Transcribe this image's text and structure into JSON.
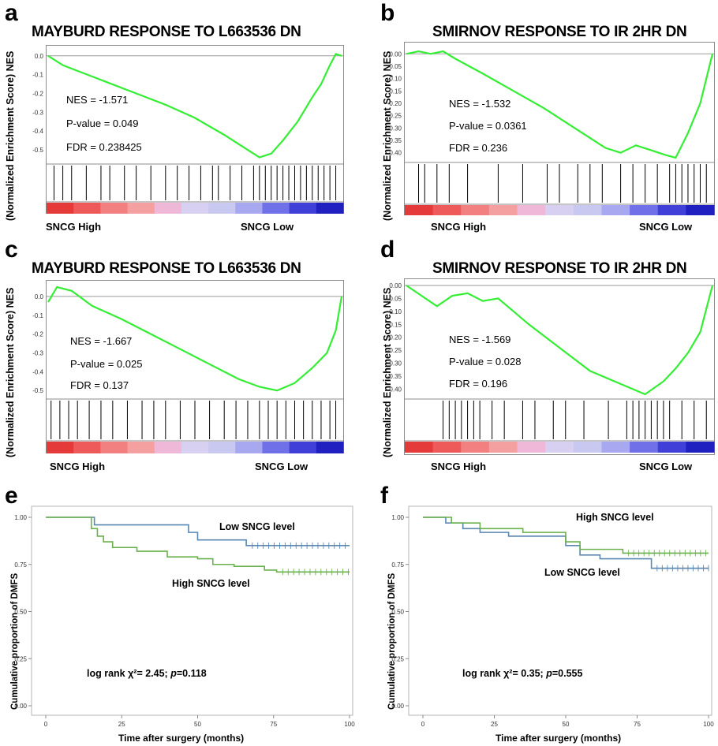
{
  "panels": {
    "a": {
      "letter": "a",
      "title": "MAYBURD RESPONSE TO L663536 DN",
      "ylabel": "(Normalized Enrichment Score) NES",
      "yticks": [
        "0.0",
        "-0.1",
        "-0.2",
        "-0.3",
        "-0.4",
        "-0.5"
      ],
      "nes": "NES = -1.571",
      "pval": "P-value = 0.049",
      "fdr": "FDR = 0.238425",
      "xleft": "SNCG High",
      "xright": "SNCG Low"
    },
    "b": {
      "letter": "b",
      "title": "SMIRNOV RESPONSE TO IR 2HR DN",
      "ylabel": "(Normalized Enrichment Score) NES",
      "yticks": [
        "0.00",
        "-0.05",
        "-0.10",
        "-0.15",
        "-0.20",
        "-0.25",
        "-0.30",
        "-0.35",
        "-0.40"
      ],
      "nes": "NES = -1.532",
      "pval": "P-value = 0.0361",
      "fdr": "FDR = 0.236",
      "xleft": "SNCG High",
      "xright": "SNCG Low"
    },
    "c": {
      "letter": "c",
      "title": "MAYBURD RESPONSE TO L663536 DN",
      "ylabel": "(Normalized Enrichment Score) NES",
      "yticks": [
        "0.0",
        "-0.1",
        "-0.2",
        "-0.3",
        "-0.4",
        "-0.5"
      ],
      "nes": "NES = -1.667",
      "pval": "P-value = 0.025",
      "fdr": "FDR = 0.137",
      "xleft": "SNCG High",
      "xright": "SNCG Low"
    },
    "d": {
      "letter": "d",
      "title": "SMIRNOV RESPONSE TO IR 2HR DN",
      "ylabel": "(Normalized Enrichment Score) NES",
      "yticks": [
        "0.00",
        "-0.05",
        "-0.10",
        "-0.15",
        "-0.20",
        "-0.25",
        "-0.30",
        "-0.35",
        "-0.40"
      ],
      "nes": "NES = -1.569",
      "pval": "P-value = 0.028",
      "fdr": "FDR = 0.196",
      "xleft": "SNCG High",
      "xright": "SNCG Low"
    },
    "e": {
      "letter": "e",
      "ylabel": "Cumulative proportion of DMFS",
      "xlabel": "Time after surgery  (months)",
      "yticks": [
        "1.00",
        "0.75",
        "0.50",
        "0.25",
        "0.00"
      ],
      "xticks": [
        "0",
        "25",
        "50",
        "75",
        "100"
      ],
      "low_label": "Low SNCG level",
      "high_label": "High SNCG level",
      "stat_prefix": "log rank χ²= 2.45; ",
      "stat_p": "p",
      "stat_suffix": "=0.118"
    },
    "f": {
      "letter": "f",
      "ylabel": "Cumulative proportion of DMFS",
      "xlabel": "Time after surgery  (months)",
      "yticks": [
        "1.00",
        "0.75",
        "0.50",
        "0.25",
        "0.00"
      ],
      "xticks": [
        "0",
        "25",
        "50",
        "75",
        "100"
      ],
      "low_label": "Low SNCG level",
      "high_label": "High SNCG level",
      "stat_prefix": "log rank χ²= 0.35; ",
      "stat_p": "p",
      "stat_suffix": "=0.555"
    }
  },
  "colors": {
    "es_curve": "#33ee33",
    "low_sncg": "#5b87b0",
    "high_sncg": "#6ab04c",
    "frame": "#8c8c8c"
  },
  "chart_data": [
    {
      "type": "line",
      "panel": "a",
      "title": "MAYBURD RESPONSE TO L663536 DN",
      "ylabel": "(Normalized Enrichment Score) NES",
      "ylim": [
        -0.55,
        0.02
      ],
      "x": [
        0,
        0.05,
        0.1,
        0.15,
        0.2,
        0.3,
        0.4,
        0.5,
        0.6,
        0.65,
        0.72,
        0.76,
        0.8,
        0.85,
        0.9,
        0.93,
        0.96,
        0.98,
        1.0
      ],
      "y": [
        0.0,
        -0.05,
        -0.08,
        -0.11,
        -0.14,
        -0.2,
        -0.26,
        -0.33,
        -0.42,
        -0.47,
        -0.54,
        -0.52,
        -0.45,
        -0.35,
        -0.22,
        -0.15,
        -0.05,
        0.01,
        0.0
      ],
      "hits": [
        0.02,
        0.05,
        0.08,
        0.13,
        0.18,
        0.21,
        0.26,
        0.3,
        0.35,
        0.4,
        0.44,
        0.48,
        0.52,
        0.56,
        0.58,
        0.62,
        0.66,
        0.7,
        0.72,
        0.74,
        0.76,
        0.78,
        0.8,
        0.82,
        0.84,
        0.86,
        0.88,
        0.9,
        0.92,
        0.94,
        0.96,
        0.98
      ]
    },
    {
      "type": "line",
      "panel": "b",
      "title": "SMIRNOV RESPONSE TO IR 2HR DN",
      "ylabel": "(Normalized Enrichment Score) NES",
      "ylim": [
        -0.42,
        0.02
      ],
      "x": [
        0,
        0.04,
        0.08,
        0.12,
        0.16,
        0.25,
        0.35,
        0.45,
        0.55,
        0.6,
        0.65,
        0.7,
        0.75,
        0.8,
        0.85,
        0.88,
        0.92,
        0.96,
        1.0
      ],
      "y": [
        0.0,
        0.01,
        0.0,
        0.01,
        -0.02,
        -0.08,
        -0.15,
        -0.22,
        -0.3,
        -0.34,
        -0.38,
        -0.4,
        -0.37,
        -0.39,
        -0.41,
        -0.42,
        -0.32,
        -0.2,
        0.0
      ],
      "hits": [
        0.04,
        0.06,
        0.1,
        0.14,
        0.2,
        0.3,
        0.38,
        0.46,
        0.5,
        0.56,
        0.6,
        0.64,
        0.7,
        0.74,
        0.78,
        0.82,
        0.86,
        0.88,
        0.9,
        0.92,
        0.94,
        0.96,
        0.98
      ]
    },
    {
      "type": "line",
      "panel": "c",
      "title": "MAYBURD RESPONSE TO L663536 DN",
      "ylabel": "(Normalized Enrichment Score) NES",
      "ylim": [
        -0.52,
        0.05
      ],
      "x": [
        0,
        0.03,
        0.08,
        0.15,
        0.25,
        0.35,
        0.45,
        0.55,
        0.65,
        0.72,
        0.78,
        0.84,
        0.9,
        0.95,
        0.98,
        1.0
      ],
      "y": [
        -0.03,
        0.05,
        0.03,
        -0.05,
        -0.12,
        -0.2,
        -0.28,
        -0.36,
        -0.44,
        -0.48,
        -0.5,
        -0.46,
        -0.38,
        -0.3,
        -0.18,
        0.0
      ],
      "hits": [
        0.01,
        0.04,
        0.07,
        0.1,
        0.14,
        0.18,
        0.22,
        0.27,
        0.32,
        0.36,
        0.4,
        0.45,
        0.5,
        0.55,
        0.6,
        0.64,
        0.68,
        0.72,
        0.75,
        0.78,
        0.81,
        0.84,
        0.87,
        0.9,
        0.93,
        0.96,
        0.98
      ]
    },
    {
      "type": "line",
      "panel": "d",
      "title": "SMIRNOV RESPONSE TO IR 2HR DN",
      "ylabel": "(Normalized Enrichment Score) NES",
      "ylim": [
        -0.42,
        0.0
      ],
      "x": [
        0,
        0.05,
        0.1,
        0.15,
        0.2,
        0.25,
        0.3,
        0.4,
        0.5,
        0.6,
        0.7,
        0.78,
        0.84,
        0.88,
        0.92,
        0.96,
        1.0
      ],
      "y": [
        0.0,
        -0.04,
        -0.08,
        -0.04,
        -0.03,
        -0.06,
        -0.05,
        -0.15,
        -0.24,
        -0.33,
        -0.38,
        -0.42,
        -0.37,
        -0.32,
        -0.26,
        -0.18,
        0.0
      ],
      "hits": [
        0.12,
        0.14,
        0.16,
        0.18,
        0.2,
        0.22,
        0.24,
        0.28,
        0.32,
        0.38,
        0.42,
        0.48,
        0.52,
        0.58,
        0.66,
        0.72,
        0.74,
        0.76,
        0.78,
        0.8,
        0.82,
        0.84,
        0.86,
        0.9,
        0.94,
        0.98
      ]
    },
    {
      "type": "line",
      "panel": "e",
      "xlabel": "Time after surgery  (months)",
      "ylabel": "Cumulative proportion of DMFS",
      "xlim": [
        0,
        100
      ],
      "ylim": [
        0,
        1
      ],
      "series": [
        {
          "name": "Low SNCG level",
          "x": [
            0,
            16,
            47,
            50,
            66,
            100
          ],
          "y": [
            1.0,
            0.96,
            0.92,
            0.88,
            0.85,
            0.85
          ]
        },
        {
          "name": "High SNCG level",
          "x": [
            0,
            15,
            17,
            19,
            22,
            30,
            40,
            50,
            55,
            62,
            72,
            76,
            100
          ],
          "y": [
            1.0,
            0.94,
            0.9,
            0.87,
            0.84,
            0.82,
            0.79,
            0.78,
            0.75,
            0.74,
            0.72,
            0.71,
            0.71
          ]
        }
      ]
    },
    {
      "type": "line",
      "panel": "f",
      "xlabel": "Time after surgery  (months)",
      "ylabel": "Cumulative proportion of DMFS",
      "xlim": [
        0,
        100
      ],
      "ylim": [
        0,
        1
      ],
      "series": [
        {
          "name": "Low SNCG level",
          "x": [
            0,
            8,
            14,
            20,
            30,
            50,
            55,
            62,
            80,
            100
          ],
          "y": [
            1.0,
            0.97,
            0.94,
            0.92,
            0.9,
            0.85,
            0.8,
            0.78,
            0.73,
            0.73
          ]
        },
        {
          "name": "High SNCG level",
          "x": [
            0,
            10,
            20,
            35,
            50,
            55,
            70,
            100
          ],
          "y": [
            1.0,
            0.97,
            0.94,
            0.92,
            0.87,
            0.83,
            0.81,
            0.81
          ]
        }
      ]
    }
  ]
}
